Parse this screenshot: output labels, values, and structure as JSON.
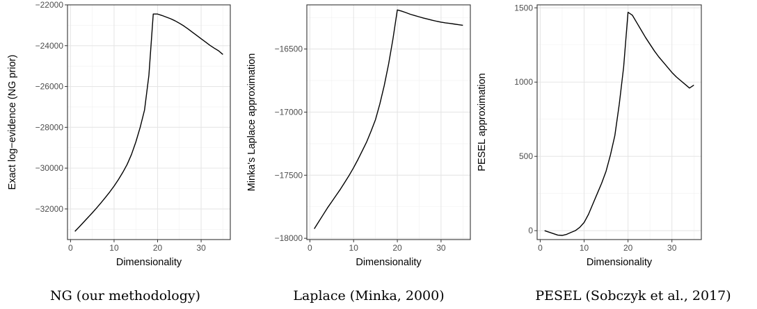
{
  "chart_data": [
    {
      "type": "line",
      "xlabel": "Dimensionality",
      "ylabel": "Exact log−evidence (NG prior)",
      "caption": "NG (our methodology)",
      "xlim": [
        -0.7,
        36.7
      ],
      "ylim": [
        -33500,
        -22000
      ],
      "xticks": [
        0,
        10,
        20,
        30
      ],
      "xtick_labels": [
        "0",
        "10",
        "20",
        "30"
      ],
      "yticks": [
        -32000,
        -30000,
        -28000,
        -26000,
        -24000,
        -22000
      ],
      "ytick_labels": [
        "−32000",
        "−30000",
        "−28000",
        "−26000",
        "−24000",
        "−22000"
      ],
      "grid": true,
      "color": "#000000",
      "x": [
        1,
        2,
        3,
        4,
        5,
        6,
        7,
        8,
        9,
        10,
        11,
        12,
        13,
        14,
        15,
        16,
        17,
        18,
        19,
        20,
        21,
        22,
        23,
        24,
        25,
        26,
        27,
        28,
        29,
        30,
        31,
        32,
        33,
        34,
        35
      ],
      "y": [
        -33100,
        -32880,
        -32650,
        -32420,
        -32190,
        -31950,
        -31700,
        -31440,
        -31170,
        -30880,
        -30560,
        -30210,
        -29820,
        -29330,
        -28720,
        -28000,
        -27150,
        -25450,
        -22450,
        -22450,
        -22520,
        -22600,
        -22680,
        -22780,
        -22900,
        -23030,
        -23180,
        -23340,
        -23500,
        -23660,
        -23820,
        -23980,
        -24120,
        -24250,
        -24430
      ]
    },
    {
      "type": "line",
      "xlabel": "Dimensionality",
      "ylabel": "Minka's Laplace approximation",
      "caption": "Laplace (Minka, 2000)",
      "xlim": [
        -0.7,
        36.7
      ],
      "ylim": [
        -18010,
        -16150
      ],
      "xticks": [
        0,
        10,
        20,
        30
      ],
      "xtick_labels": [
        "0",
        "10",
        "20",
        "30"
      ],
      "yticks": [
        -18000,
        -17500,
        -17000,
        -16500
      ],
      "ytick_labels": [
        "−18000",
        "−17500",
        "−17000",
        "−16500"
      ],
      "grid": true,
      "color": "#000000",
      "x": [
        1,
        2,
        3,
        4,
        5,
        6,
        7,
        8,
        9,
        10,
        11,
        12,
        13,
        14,
        15,
        16,
        17,
        18,
        19,
        20,
        21,
        22,
        23,
        24,
        25,
        26,
        27,
        28,
        29,
        30,
        31,
        32,
        33,
        34,
        35
      ],
      "y": [
        -17925,
        -17870,
        -17815,
        -17760,
        -17710,
        -17660,
        -17610,
        -17555,
        -17500,
        -17440,
        -17375,
        -17305,
        -17235,
        -17150,
        -17060,
        -16935,
        -16790,
        -16620,
        -16420,
        -16190,
        -16200,
        -16212,
        -16225,
        -16235,
        -16245,
        -16255,
        -16263,
        -16272,
        -16280,
        -16287,
        -16293,
        -16297,
        -16302,
        -16307,
        -16312
      ]
    },
    {
      "type": "line",
      "xlabel": "Dimensionality",
      "ylabel": "PESEL approximation",
      "caption": "PESEL (Sobczyk et al., 2017)",
      "xlim": [
        -0.7,
        36.7
      ],
      "ylim": [
        -60,
        1520
      ],
      "xticks": [
        0,
        10,
        20,
        30
      ],
      "xtick_labels": [
        "0",
        "10",
        "20",
        "30"
      ],
      "yticks": [
        0,
        500,
        1000,
        1500
      ],
      "ytick_labels": [
        "0",
        "500",
        "1000",
        "1500"
      ],
      "grid": true,
      "color": "#000000",
      "x": [
        1,
        2,
        3,
        4,
        5,
        6,
        7,
        8,
        9,
        10,
        11,
        12,
        13,
        14,
        15,
        16,
        17,
        18,
        19,
        20,
        21,
        22,
        23,
        24,
        25,
        26,
        27,
        28,
        29,
        30,
        31,
        32,
        33,
        34,
        35
      ],
      "y": [
        0,
        -10,
        -20,
        -30,
        -32,
        -25,
        -12,
        0,
        22,
        55,
        110,
        180,
        250,
        320,
        400,
        510,
        640,
        850,
        1100,
        1470,
        1450,
        1400,
        1350,
        1300,
        1255,
        1210,
        1170,
        1135,
        1100,
        1065,
        1035,
        1010,
        985,
        960,
        980
      ]
    }
  ]
}
